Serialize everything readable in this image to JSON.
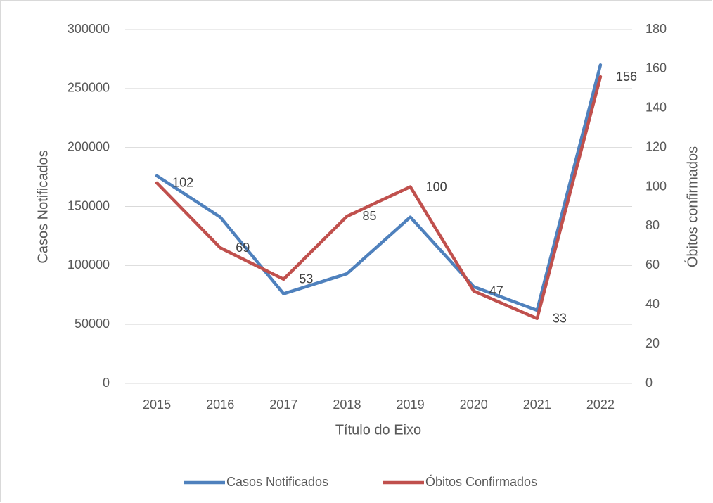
{
  "chart_data": {
    "type": "line",
    "categories": [
      "2015",
      "2016",
      "2017",
      "2018",
      "2019",
      "2020",
      "2021",
      "2022"
    ],
    "series": [
      {
        "name": "Casos Notificados",
        "color": "#4f81bd",
        "values": [
          176000,
          141000,
          76000,
          93000,
          141000,
          82000,
          62000,
          270000
        ]
      },
      {
        "name": "Óbitos Confirmados",
        "color": "#c0504d",
        "axis": "y2",
        "values": [
          102,
          69,
          53,
          85,
          100,
          47,
          33,
          156
        ],
        "data_labels": true
      }
    ],
    "xlabel": "Título do Eixo",
    "ylabel": "Casos Notificados",
    "y2label": "Óbitos confirmados",
    "ylim": [
      0,
      300000
    ],
    "yticks": [
      0,
      50000,
      100000,
      150000,
      200000,
      250000,
      300000
    ],
    "y2lim": [
      0,
      180
    ],
    "y2ticks": [
      0,
      20,
      40,
      60,
      80,
      100,
      120,
      140,
      160,
      180
    ],
    "grid": true,
    "legend": "bottom"
  }
}
